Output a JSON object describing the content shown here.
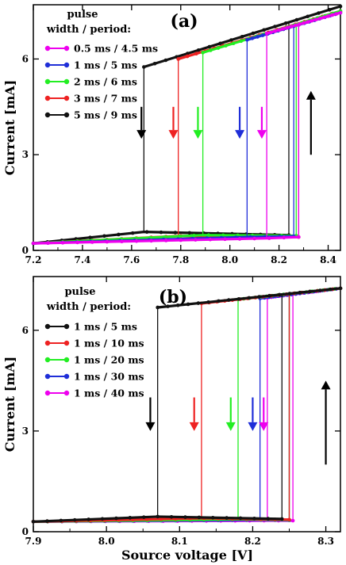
{
  "figure": {
    "xlabel": "Source voltage [V]",
    "legend_title_line1": "pulse",
    "legend_title_line2": "width / period:"
  },
  "chart_data": [
    {
      "type": "line",
      "panel_label": "(a)",
      "xlabel": "",
      "ylabel": "Current [mA]",
      "xlim": [
        7.2,
        8.45
      ],
      "ylim": [
        0,
        7.7
      ],
      "xticks": [
        "7.2",
        "7.4",
        "7.6",
        "7.8",
        "8.0",
        "8.2",
        "8.4"
      ],
      "yticks": [
        "0",
        "3",
        "6"
      ],
      "grid": false,
      "legend_position": "top-left",
      "series": [
        {
          "name": "0.5 ms / 4.5 ms",
          "color": "#ee00ee",
          "v_down": 8.15,
          "v_up": 8.28,
          "low": [
            [
              7.2,
              0.22
            ],
            [
              8.15,
              0.38
            ],
            [
              8.28,
              0.42
            ]
          ],
          "high": [
            [
              8.15,
              6.8
            ],
            [
              8.45,
              7.45
            ]
          ]
        },
        {
          "name": "1 ms / 5 ms",
          "color": "#1f2ed8",
          "v_down": 8.07,
          "v_up": 8.26,
          "low": [
            [
              7.2,
              0.22
            ],
            [
              8.07,
              0.42
            ],
            [
              8.26,
              0.44
            ]
          ],
          "high": [
            [
              8.07,
              6.6
            ],
            [
              8.45,
              7.45
            ]
          ]
        },
        {
          "name": "2 ms / 6 ms",
          "color": "#22ee22",
          "v_down": 7.89,
          "v_up": 8.27,
          "low": [
            [
              7.2,
              0.22
            ],
            [
              7.89,
              0.48
            ],
            [
              8.27,
              0.46
            ]
          ],
          "high": [
            [
              7.89,
              6.2
            ],
            [
              8.45,
              7.5
            ]
          ]
        },
        {
          "name": "3 ms / 7 ms",
          "color": "#ee2222",
          "v_down": 7.79,
          "v_up": 8.28,
          "low": [
            [
              7.2,
              0.22
            ],
            [
              7.79,
              0.45
            ],
            [
              8.28,
              0.42
            ]
          ],
          "high": [
            [
              7.79,
              6.0
            ],
            [
              8.45,
              7.5
            ]
          ]
        },
        {
          "name": "5 ms / 9 ms",
          "color": "#111111",
          "v_down": 7.65,
          "v_up": 8.24,
          "low": [
            [
              7.2,
              0.22
            ],
            [
              7.65,
              0.58
            ],
            [
              8.24,
              0.48
            ]
          ],
          "high": [
            [
              7.65,
              5.75
            ],
            [
              8.45,
              7.65
            ]
          ]
        }
      ],
      "arrows": [
        {
          "x": 7.64,
          "y_from": 4.5,
          "y_to": 3.5,
          "color": "#000000",
          "direction": "down"
        },
        {
          "x": 7.77,
          "y_from": 4.5,
          "y_to": 3.5,
          "color": "#ee2222",
          "direction": "down"
        },
        {
          "x": 7.87,
          "y_from": 4.5,
          "y_to": 3.5,
          "color": "#22ee22",
          "direction": "down"
        },
        {
          "x": 8.04,
          "y_from": 4.5,
          "y_to": 3.5,
          "color": "#1f2ed8",
          "direction": "down"
        },
        {
          "x": 8.13,
          "y_from": 4.5,
          "y_to": 3.5,
          "color": "#ee00ee",
          "direction": "down"
        },
        {
          "x": 8.33,
          "y_from": 3.0,
          "y_to": 5.0,
          "color": "#000000",
          "direction": "up"
        }
      ]
    },
    {
      "type": "line",
      "panel_label": "(b)",
      "xlabel": "Source voltage [V]",
      "ylabel": "Current [mA]",
      "xlim": [
        7.9,
        8.32
      ],
      "ylim": [
        0,
        7.6
      ],
      "xticks": [
        "7.9",
        "8.0",
        "8.1",
        "8.2",
        "8.3"
      ],
      "yticks": [
        "0",
        "3",
        "6"
      ],
      "grid": false,
      "legend_position": "top-left",
      "series": [
        {
          "name": "1 ms / 5 ms",
          "color": "#111111",
          "v_down": 8.07,
          "v_up": 8.24,
          "low": [
            [
              7.9,
              0.3
            ],
            [
              8.07,
              0.45
            ],
            [
              8.24,
              0.38
            ]
          ],
          "high": [
            [
              8.07,
              6.68
            ],
            [
              8.32,
              7.25
            ]
          ]
        },
        {
          "name": "1 ms / 10 ms",
          "color": "#ee2222",
          "v_down": 8.13,
          "v_up": 8.25,
          "low": [
            [
              7.9,
              0.3
            ],
            [
              8.13,
              0.4
            ],
            [
              8.25,
              0.36
            ]
          ],
          "high": [
            [
              8.13,
              6.8
            ],
            [
              8.32,
              7.25
            ]
          ]
        },
        {
          "name": "1 ms / 20 ms",
          "color": "#22ee22",
          "v_down": 8.18,
          "v_up": 8.25,
          "low": [
            [
              7.9,
              0.3
            ],
            [
              8.18,
              0.37
            ],
            [
              8.25,
              0.35
            ]
          ],
          "high": [
            [
              8.18,
              6.92
            ],
            [
              8.32,
              7.25
            ]
          ]
        },
        {
          "name": "1 ms / 30 ms",
          "color": "#1f2ed8",
          "v_down": 8.21,
          "v_up": 8.25,
          "low": [
            [
              7.9,
              0.3
            ],
            [
              8.21,
              0.35
            ],
            [
              8.25,
              0.34
            ]
          ],
          "high": [
            [
              8.21,
              6.95
            ],
            [
              8.32,
              7.25
            ]
          ]
        },
        {
          "name": "1 ms / 40 ms",
          "color": "#ee00ee",
          "v_down": 8.22,
          "v_up": 8.255,
          "low": [
            [
              7.9,
              0.3
            ],
            [
              8.22,
              0.33
            ],
            [
              8.255,
              0.33
            ]
          ],
          "high": [
            [
              8.22,
              6.97
            ],
            [
              8.32,
              7.25
            ]
          ]
        }
      ],
      "arrows": [
        {
          "x": 8.06,
          "y_from": 4.0,
          "y_to": 3.0,
          "color": "#000000",
          "direction": "down"
        },
        {
          "x": 8.12,
          "y_from": 4.0,
          "y_to": 3.0,
          "color": "#ee2222",
          "direction": "down"
        },
        {
          "x": 8.17,
          "y_from": 4.0,
          "y_to": 3.0,
          "color": "#22ee22",
          "direction": "down"
        },
        {
          "x": 8.2,
          "y_from": 4.0,
          "y_to": 3.0,
          "color": "#1f2ed8",
          "direction": "down"
        },
        {
          "x": 8.215,
          "y_from": 4.0,
          "y_to": 3.0,
          "color": "#ee00ee",
          "direction": "down"
        },
        {
          "x": 8.3,
          "y_from": 2.0,
          "y_to": 4.5,
          "color": "#000000",
          "direction": "up"
        }
      ]
    }
  ]
}
